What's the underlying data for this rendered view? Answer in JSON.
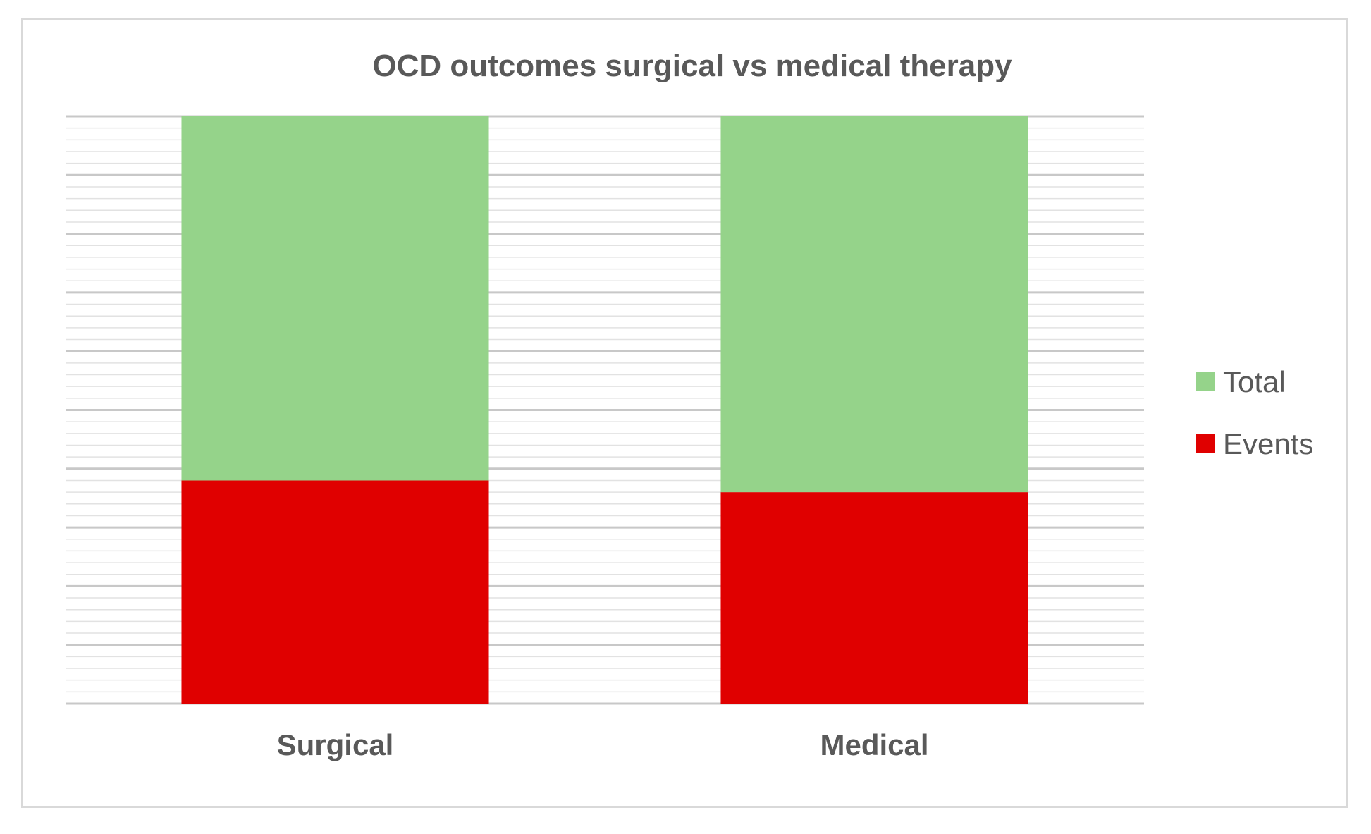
{
  "chart_data": {
    "type": "bar",
    "stacked": true,
    "title": "OCD outcomes surgical vs medical therapy",
    "xlabel": "",
    "ylabel": "",
    "categories": [
      "Surgical",
      "Medical"
    ],
    "series": [
      {
        "name": "Events",
        "values": [
          0.38,
          0.36
        ],
        "color": "#e00000"
      },
      {
        "name": "Total",
        "values": [
          0.62,
          0.64
        ],
        "color": "#95d38a"
      }
    ],
    "ylim": [
      0,
      1
    ],
    "grid": true,
    "legend_position": "right",
    "legend_order": [
      "Total",
      "Events"
    ]
  }
}
